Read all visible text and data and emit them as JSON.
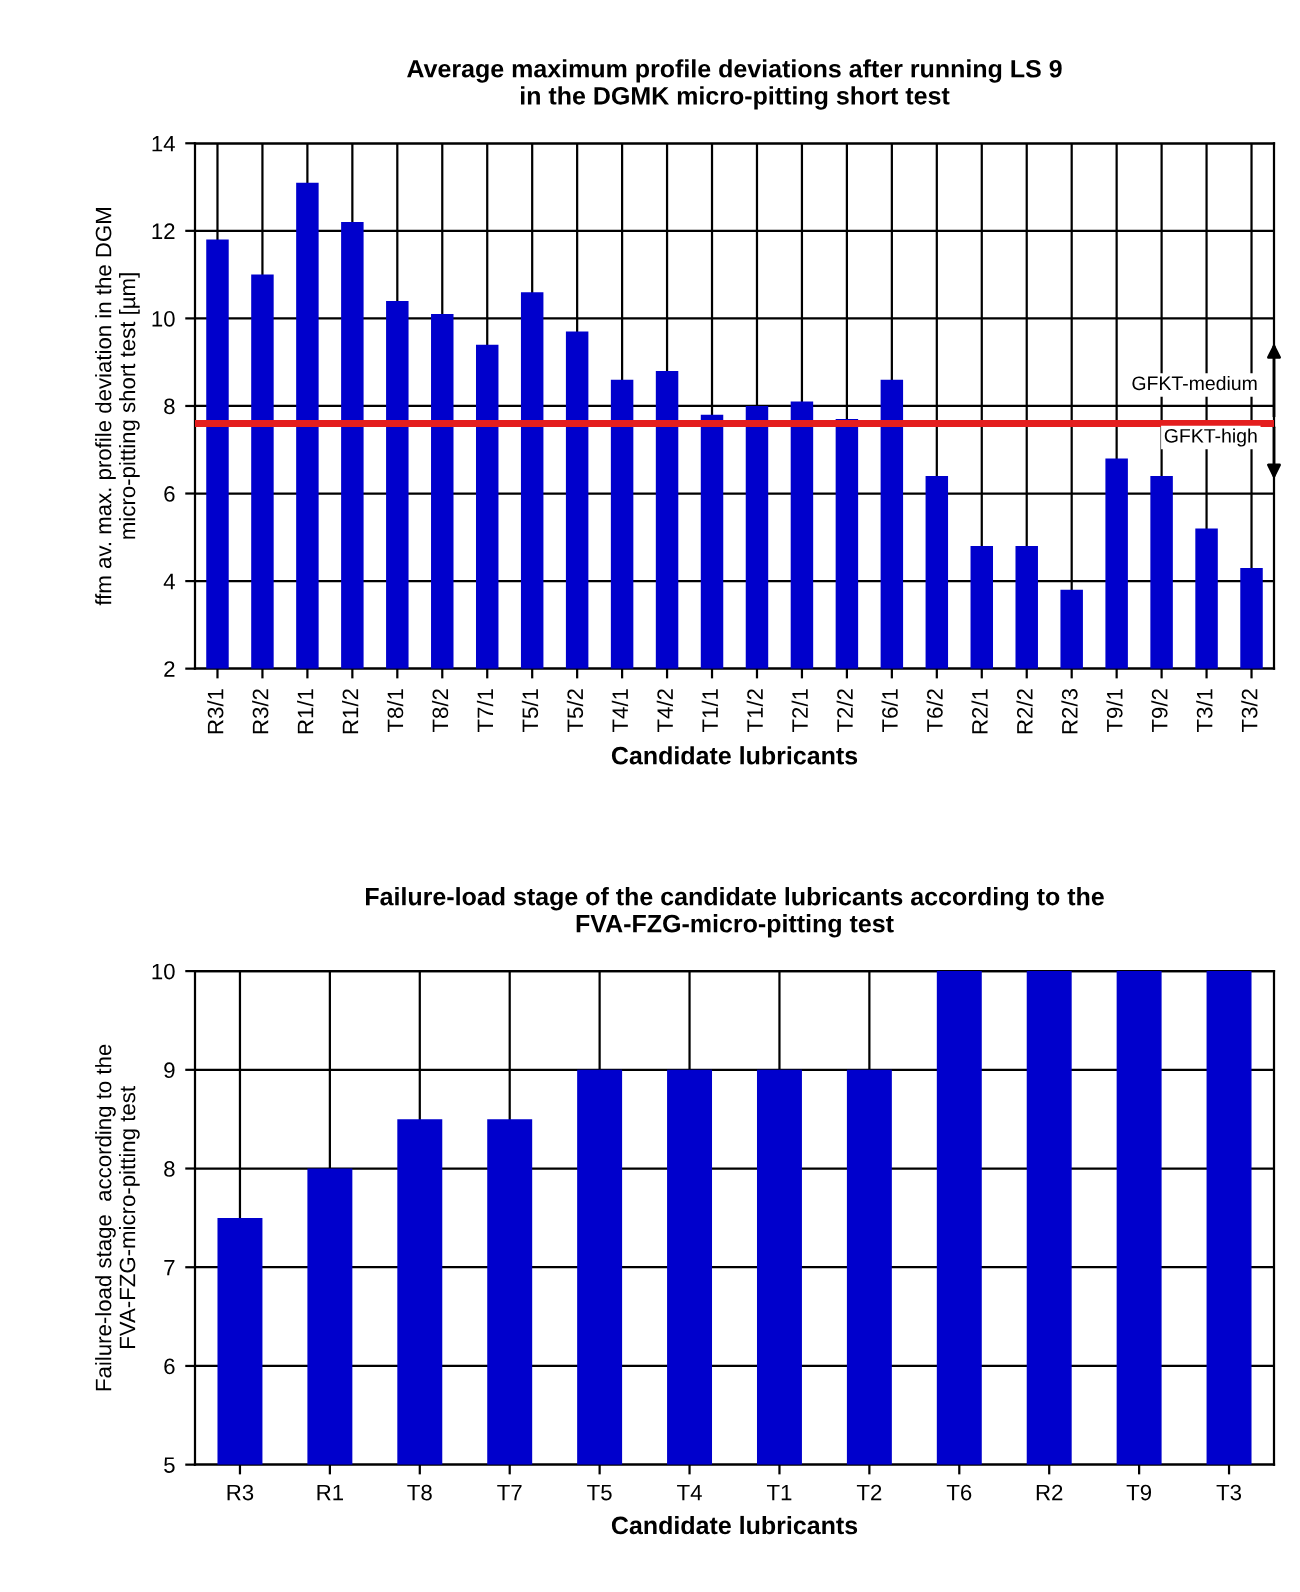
{
  "chart_data": [
    {
      "type": "bar",
      "title": "Average maximum profile deviations after running LS 9\nin the DGMK micro-pitting short test",
      "xlabel": "Candidate lubricants",
      "ylabel": "ffm av. max. profile deviation in the DGM\nmicro-pitting short test [µm]",
      "categories": [
        "R3/1",
        "R3/2",
        "R1/1",
        "R1/2",
        "T8/1",
        "T8/2",
        "T7/1",
        "T5/1",
        "T5/2",
        "T4/1",
        "T4/2",
        "T1/1",
        "T1/2",
        "T2/1",
        "T2/2",
        "T6/1",
        "T6/2",
        "R2/1",
        "R2/2",
        "R2/3",
        "T9/1",
        "T9/2",
        "T3/1",
        "T3/2"
      ],
      "values": [
        11.8,
        11.0,
        13.1,
        12.2,
        10.4,
        10.1,
        9.4,
        10.6,
        9.7,
        8.6,
        8.8,
        7.8,
        8.0,
        8.1,
        7.7,
        8.6,
        6.4,
        4.8,
        4.8,
        3.8,
        6.8,
        6.4,
        5.2,
        4.3
      ],
      "color": "#0000cc",
      "ylim": [
        2,
        14
      ],
      "yticks": [
        2,
        4,
        6,
        8,
        10,
        12,
        14
      ],
      "grid": true,
      "ref_lines": [
        {
          "axis": "y",
          "value": 7.6,
          "color": "#e41e1e"
        }
      ],
      "annotations": [
        "GFKT-medium",
        "GFKT-high"
      ]
    },
    {
      "type": "bar",
      "title": "Failure-load stage of the candidate lubricants according to the\nFVA-FZG-micro-pitting test",
      "xlabel": "Candidate lubricants",
      "ylabel": "Failure-load stage  according to the\nFVA-FZG-micro-pitting test",
      "categories": [
        "R3",
        "R1",
        "T8",
        "T7",
        "T5",
        "T4",
        "T1",
        "T2",
        "T6",
        "R2",
        "T9",
        "T3"
      ],
      "values": [
        7.5,
        8,
        8.5,
        8.5,
        9,
        9,
        9,
        9,
        10,
        10,
        10,
        10
      ],
      "color": "#0000cc",
      "ylim": [
        5,
        10
      ],
      "yticks": [
        5,
        6,
        7,
        8,
        9,
        10
      ],
      "grid": true
    }
  ]
}
